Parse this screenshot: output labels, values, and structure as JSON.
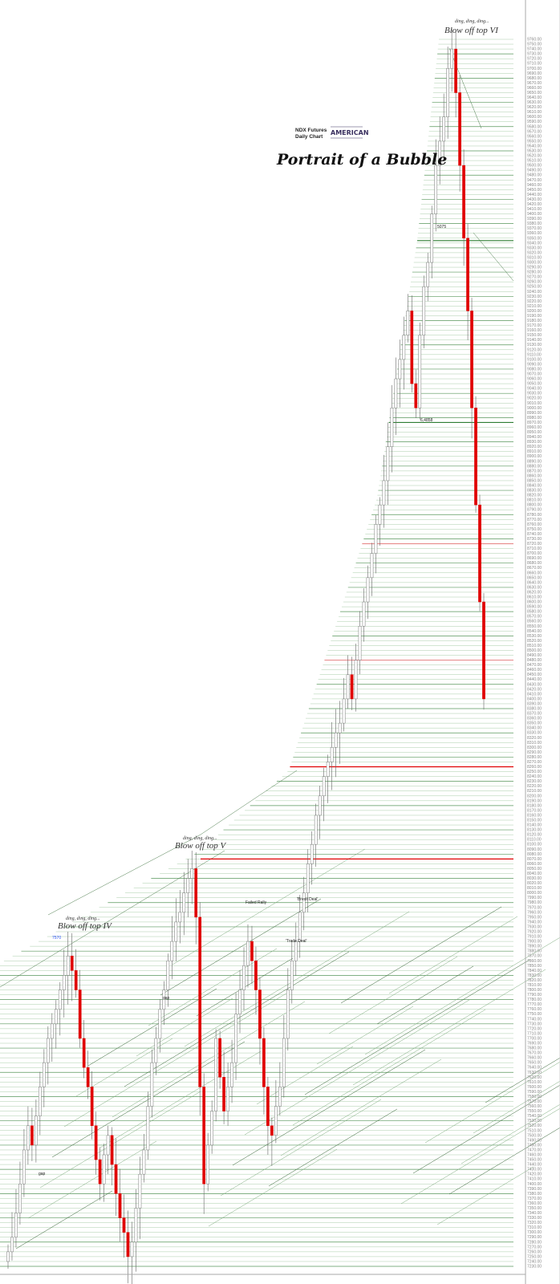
{
  "chart_data": {
    "type": "candlestick",
    "header": [
      "NDX  Futures",
      "Daily Chart"
    ],
    "logo": "Jerry's AMERICAN Cafe",
    "title": "Portrait of a Bubble",
    "ylim": [
      7230,
      9760
    ],
    "ytick_step": 10,
    "grid": true,
    "colors": {
      "down": "#e00000",
      "up": "#ffffff",
      "grid": "#9fc79f",
      "grid_dark": "#2e7d32",
      "level": "#e00000",
      "axis": "#aaaaaa"
    },
    "closes": [
      7260,
      7290,
      7340,
      7400,
      7470,
      7520,
      7480,
      7540,
      7600,
      7650,
      7700,
      7730,
      7760,
      7800,
      7830,
      7870,
      7840,
      7800,
      7700,
      7640,
      7600,
      7520,
      7450,
      7400,
      7460,
      7500,
      7440,
      7380,
      7330,
      7300,
      7250,
      7280,
      7350,
      7420,
      7470,
      7560,
      7650,
      7700,
      7760,
      7800,
      7860,
      7900,
      7940,
      7960,
      8000,
      8030,
      8050,
      7950,
      7600,
      7400,
      7480,
      7550,
      7700,
      7620,
      7550,
      7600,
      7650,
      7750,
      7800,
      7850,
      7900,
      7860,
      7800,
      7700,
      7600,
      7520,
      7500,
      7560,
      7600,
      7700,
      7800,
      7860,
      7900,
      7960,
      8000,
      8060,
      8100,
      8160,
      8200,
      8240,
      8270,
      8300,
      8330,
      8350,
      8400,
      8450,
      8400,
      8480,
      8550,
      8600,
      8650,
      8700,
      8760,
      8800,
      8850,
      8920,
      9000,
      9060,
      9100,
      9150,
      9200,
      9050,
      9000,
      9150,
      9250,
      9300,
      9400,
      9500,
      9550,
      9600,
      9700,
      9740,
      9650,
      9500,
      9350,
      9200,
      9000,
      8800,
      8600,
      8400
    ],
    "levels": [
      {
        "price": 8070,
        "color": "#e00000"
      },
      {
        "price": 8260,
        "color": "#e00000"
      },
      {
        "price": 8480,
        "color": "#e89090"
      },
      {
        "price": 8720,
        "color": "#e89090"
      },
      {
        "price": 8970,
        "color": "#2e7d32"
      },
      {
        "price": 9345,
        "color": "#2e7d32"
      }
    ],
    "annotations": {
      "ding": "ding, ding, ding...",
      "top4": "Blow off top IV",
      "top5": "Blow off top V",
      "top6": "Blow off top VI",
      "price_7570": "7570",
      "gap1": "gap",
      "gap2": "gap",
      "failed_rally": "Failed Rally",
      "brexit_deal": "'Brexit Deal'",
      "trade_deal": "'Trade Deal'",
      "p5075": "5075",
      "p4858": "6,4858"
    }
  }
}
